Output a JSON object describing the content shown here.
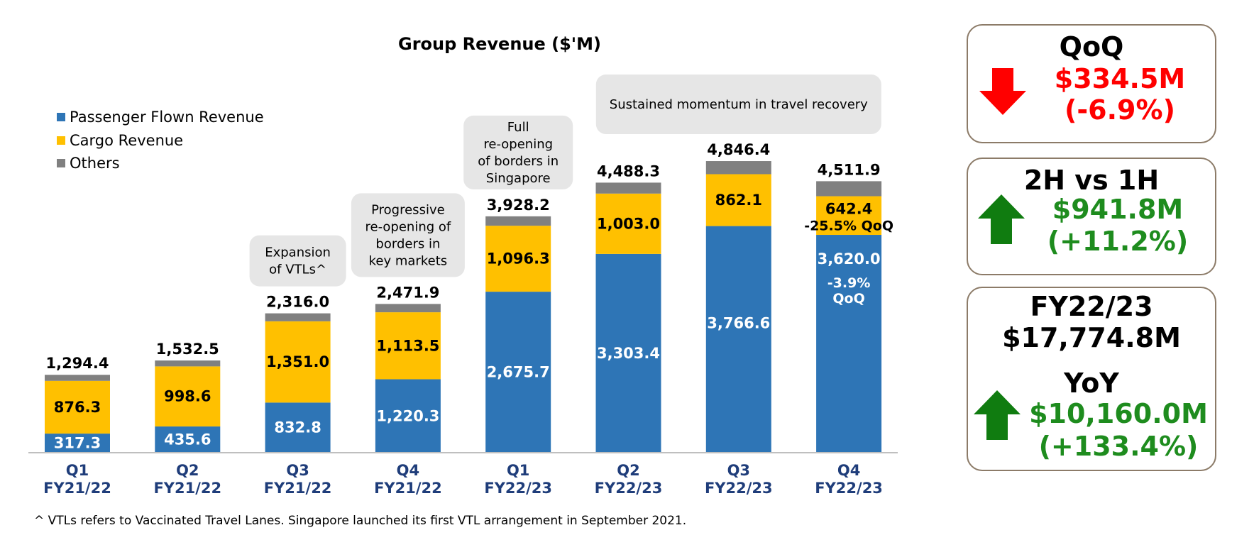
{
  "chart_data": {
    "type": "bar",
    "stacked": true,
    "title": "Group Revenue ($'M)",
    "categories": [
      "Q1\nFY21/22",
      "Q2\nFY21/22",
      "Q3\nFY21/22",
      "Q4\nFY21/22",
      "Q1\nFY22/23",
      "Q2\nFY22/23",
      "Q3\nFY22/23",
      "Q4\nFY22/23"
    ],
    "series": [
      {
        "name": "Passenger Flown Revenue",
        "color": "#2e75b6",
        "label_color": "#ffffff",
        "values": [
          317.3,
          435.6,
          832.8,
          1220.3,
          2675.7,
          3303.4,
          3766.6,
          3620.0
        ],
        "labels": [
          "317.3",
          "435.6",
          "832.8",
          "1,220.3",
          "2,675.7",
          "3,303.4",
          "3,766.6",
          "3,620.0"
        ]
      },
      {
        "name": "Cargo Revenue",
        "color": "#ffc000",
        "label_color": "#000000",
        "values": [
          876.3,
          998.6,
          1351.0,
          1113.5,
          1096.3,
          1003.0,
          862.1,
          642.4
        ],
        "labels": [
          "876.3",
          "998.6",
          "1,351.0",
          "1,113.5",
          "1,096.3",
          "1,003.0",
          "862.1",
          "642.4"
        ]
      },
      {
        "name": "Others",
        "color": "#808080",
        "label_color": "#000000",
        "values": [
          100.8,
          98.3,
          132.2,
          138.1,
          156.2,
          181.9,
          217.7,
          249.5
        ],
        "labels": [
          "",
          "",
          "",
          "",
          "",
          "",
          "",
          ""
        ]
      }
    ],
    "totals": [
      1294.4,
      1532.5,
      2316.0,
      2471.9,
      3928.2,
      4488.3,
      4846.4,
      4511.9
    ],
    "total_labels": [
      "1,294.4",
      "1,532.5",
      "2,316.0",
      "2,471.9",
      "3,928.2",
      "4,488.3",
      "4,846.4",
      "4,511.9"
    ],
    "extra_labels": [
      {
        "bar": 7,
        "series": "Cargo Revenue",
        "text": "-25.5% QoQ"
      },
      {
        "bar": 7,
        "series": "Passenger Flown Revenue",
        "text": "-3.9%"
      },
      {
        "bar": 7,
        "series": "Passenger Flown Revenue",
        "text": "QoQ"
      }
    ],
    "annotations": [
      {
        "bar": 2,
        "lines": [
          "Expansion",
          "of VTLs^"
        ]
      },
      {
        "bar": 3,
        "lines": [
          "Progressive",
          "re-opening of",
          "borders in",
          "key markets"
        ]
      },
      {
        "bar": 4,
        "lines": [
          "Full",
          "re-opening",
          "of borders in",
          "Singapore"
        ]
      },
      {
        "bars": [
          5,
          7
        ],
        "lines": [
          "Sustained momentum in travel recovery"
        ]
      }
    ],
    "ylim": [
      0,
      5000
    ],
    "xlabel": "",
    "ylabel": "",
    "legend_position": "top-left",
    "grid": false
  },
  "footnote": "^ VTLs refers to Vaccinated Travel Lanes. Singapore launched its first VTL arrangement in September 2021.",
  "kpis": {
    "qoq": {
      "title": "QoQ",
      "direction": "down",
      "value": "$334.5M",
      "pct": "(-6.9%)",
      "color": "#ff0000"
    },
    "h2h1": {
      "title": "2H vs 1H",
      "direction": "up",
      "value": "$941.8M",
      "pct": "(+11.2%)",
      "color": "#1e8c1e"
    },
    "fy": {
      "title": "FY22/23",
      "total": "$17,774.8M",
      "yoy_title": "YoY",
      "direction": "up",
      "value": "$10,160.0M",
      "pct": "(+133.4%)",
      "color": "#1e8c1e"
    }
  },
  "colors": {
    "arrow_down": "#ff0000",
    "arrow_up": "#107c10",
    "box_border": "#8c7b68",
    "annotation_bg": "#e6e6e6",
    "axis_label": "#1f3d7a"
  }
}
